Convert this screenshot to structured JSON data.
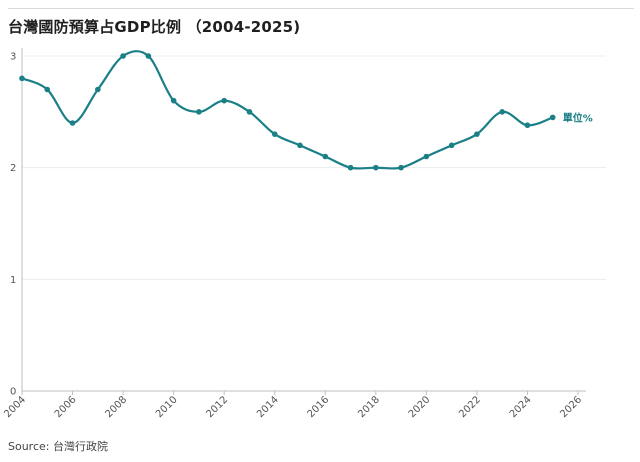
{
  "title": "台灣國防預算占GDP比例 （2004-2025)",
  "source": "Source: 台灣行政院",
  "chart_data": {
    "type": "line",
    "title": "台灣國防預算占GDP比例 （2004-2025)",
    "xlabel": "",
    "ylabel": "",
    "unit_label": "單位%",
    "x": [
      2004,
      2005,
      2006,
      2007,
      2008,
      2009,
      2010,
      2011,
      2012,
      2013,
      2014,
      2015,
      2016,
      2017,
      2018,
      2019,
      2020,
      2021,
      2022,
      2023,
      2024,
      2025
    ],
    "series": [
      {
        "values": [
          2.8,
          2.7,
          2.4,
          2.7,
          3.0,
          3.0,
          2.6,
          2.5,
          2.6,
          2.5,
          2.3,
          2.2,
          2.1,
          2.0,
          2.0,
          2.0,
          2.1,
          2.2,
          2.3,
          2.5,
          2.38,
          2.45
        ]
      }
    ],
    "xlim": [
      2004,
      2026
    ],
    "ylim": [
      0,
      3
    ],
    "xticks": [
      "2004",
      "2006",
      "2008",
      "2010",
      "2012",
      "2014",
      "2016",
      "2018",
      "2020",
      "2022",
      "2024",
      "2026"
    ],
    "yticks": [
      "0",
      "1",
      "2",
      "3"
    ],
    "grid": true,
    "line_color": "#1a7f86",
    "grid_color": "#ececec",
    "axis_color": "#bfbfbf"
  }
}
